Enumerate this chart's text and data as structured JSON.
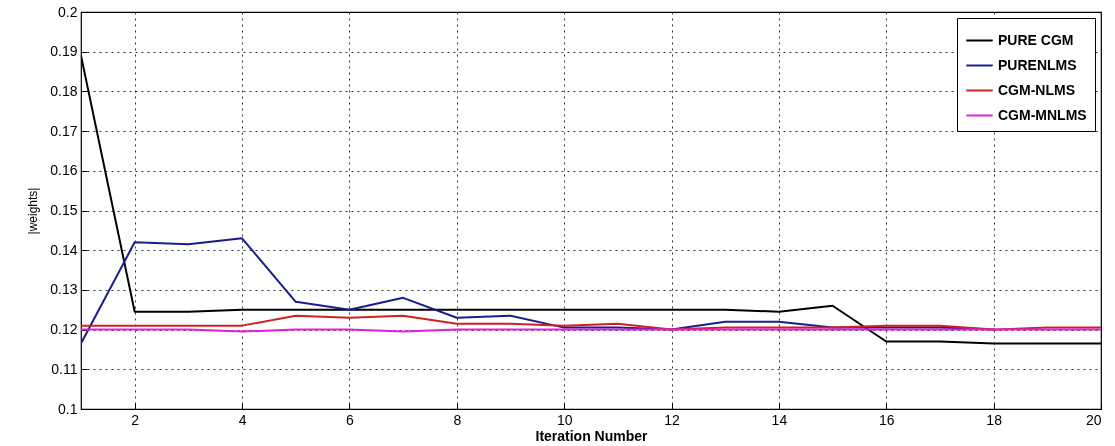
{
  "chart_data": {
    "type": "line",
    "xlabel": "Iteration Number",
    "ylabel": "|weights|",
    "x": [
      1,
      2,
      3,
      4,
      5,
      6,
      7,
      8,
      9,
      10,
      11,
      12,
      13,
      14,
      15,
      16,
      17,
      18,
      19,
      20
    ],
    "series": [
      {
        "name": "PURE CGM",
        "color": "#000000",
        "values": [
          0.189,
          0.1245,
          0.1245,
          0.125,
          0.125,
          0.125,
          0.125,
          0.125,
          0.125,
          0.125,
          0.125,
          0.125,
          0.125,
          0.1245,
          0.126,
          0.117,
          0.117,
          0.1165,
          0.1165,
          0.1165
        ]
      },
      {
        "name": "PURENLMS",
        "color": "#1c1c8c",
        "values": [
          0.1165,
          0.142,
          0.1415,
          0.143,
          0.127,
          0.125,
          0.128,
          0.123,
          0.1235,
          0.1205,
          0.1205,
          0.12,
          0.122,
          0.122,
          0.1205,
          0.1205,
          0.1205,
          0.12,
          null,
          null
        ]
      },
      {
        "name": "CGM-NLMS",
        "color": "#cc2222",
        "values": [
          0.121,
          0.121,
          0.121,
          0.121,
          0.1235,
          0.123,
          0.1235,
          0.1215,
          0.1215,
          0.121,
          0.1215,
          0.12,
          0.1205,
          0.1205,
          0.1205,
          0.121,
          0.121,
          0.12,
          0.1205,
          0.1205
        ]
      },
      {
        "name": "CGM-MNLMS",
        "color": "#e020e0",
        "values": [
          0.12,
          0.12,
          0.12,
          0.1195,
          0.12,
          0.12,
          0.1195,
          0.12,
          0.12,
          0.12,
          0.12,
          0.12,
          0.12,
          0.12,
          0.12,
          0.12,
          0.12,
          0.12,
          0.12,
          0.12
        ]
      }
    ],
    "xlim": [
      1,
      20
    ],
    "xticks": [
      2,
      4,
      6,
      8,
      10,
      12,
      14,
      16,
      18,
      20
    ],
    "ylim": [
      0.1,
      0.2
    ],
    "yticks": [
      0.1,
      0.11,
      0.12,
      0.13,
      0.14,
      0.15,
      0.16,
      0.17,
      0.18,
      0.19,
      0.2
    ],
    "grid": true,
    "legend": "top right",
    "line_style": "solid",
    "marker": "none"
  }
}
